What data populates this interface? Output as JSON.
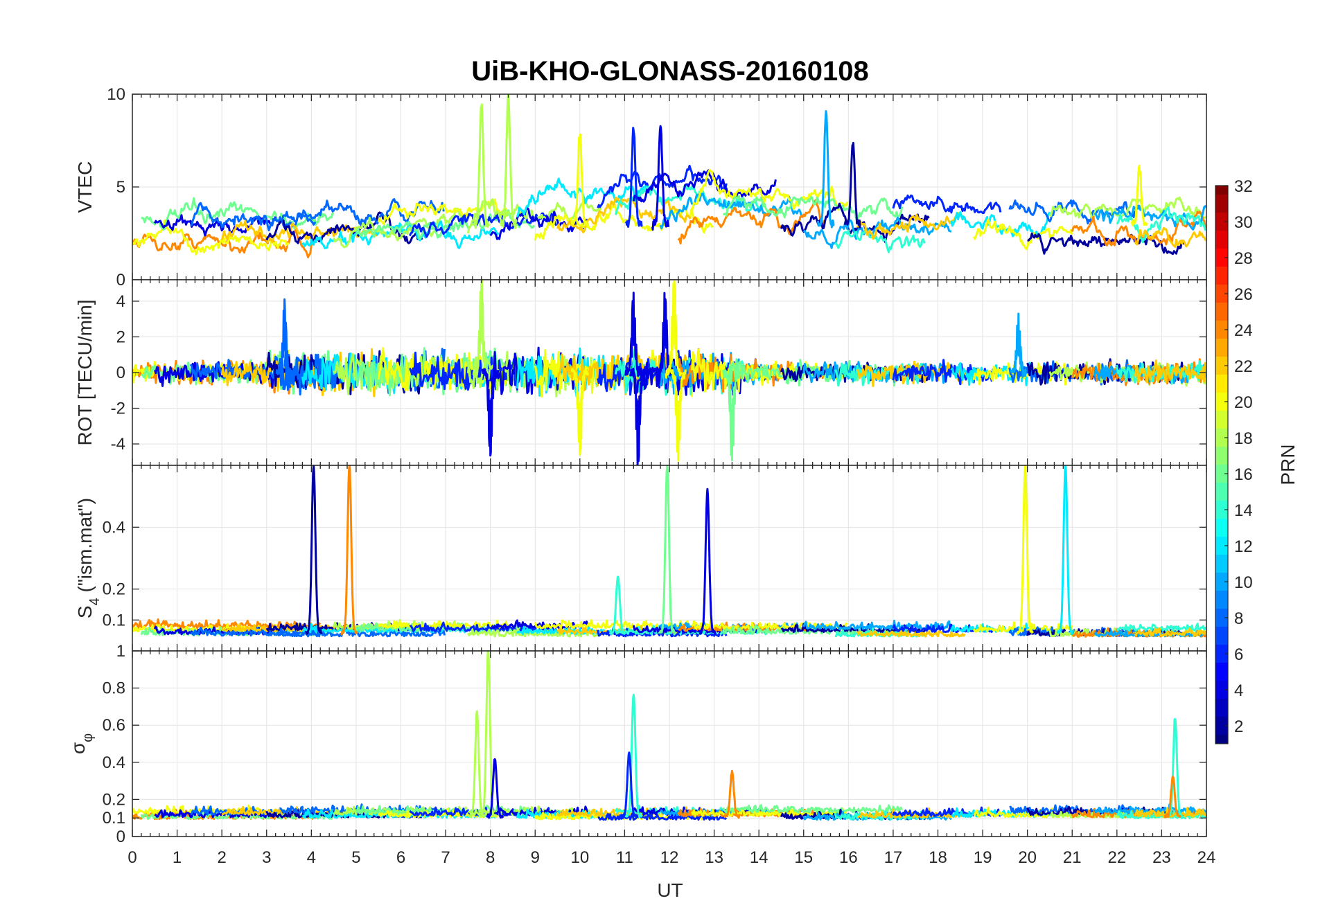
{
  "chart_data": {
    "type": "line",
    "title": "UiB-KHO-GLONASS-20160108",
    "xlabel": "UT",
    "xlim": [
      0,
      24
    ],
    "x_ticks": [
      "0",
      "1",
      "2",
      "3",
      "4",
      "5",
      "6",
      "7",
      "8",
      "9",
      "10",
      "11",
      "12",
      "13",
      "14",
      "15",
      "16",
      "17",
      "18",
      "19",
      "20",
      "21",
      "22",
      "23",
      "24"
    ],
    "grid": true,
    "colorbar": {
      "label": "PRN",
      "range": [
        1,
        32
      ],
      "colormap": "jet",
      "ticks": [
        "2",
        "4",
        "6",
        "8",
        "10",
        "12",
        "14",
        "16",
        "18",
        "20",
        "22",
        "24",
        "26",
        "28",
        "30",
        "32"
      ],
      "placement": "right"
    },
    "panels": [
      {
        "ylabel": "VTEC",
        "ylim": [
          0,
          10
        ],
        "y_ticks": [
          "0",
          "5",
          "10"
        ],
        "y_tick_values": [
          0,
          5,
          10
        ],
        "baseline": 3.0,
        "noise": 0.6,
        "spread": 1.2,
        "events": [
          {
            "x": 7.8,
            "peak": 9.5,
            "prn": 18
          },
          {
            "x": 8.4,
            "peak": 10.0,
            "prn": 18
          },
          {
            "x": 10.0,
            "peak": 8.0,
            "prn": 20
          },
          {
            "x": 11.2,
            "peak": 8.2,
            "prn": 6
          },
          {
            "x": 11.8,
            "peak": 8.3,
            "prn": 4
          },
          {
            "x": 15.5,
            "peak": 9.0,
            "prn": 10
          },
          {
            "x": 16.1,
            "peak": 7.5,
            "prn": 2
          },
          {
            "x": 22.5,
            "peak": 6.0,
            "prn": 20
          }
        ]
      },
      {
        "ylabel": "ROT [TECU/min]",
        "ylim": [
          -5.2,
          5.2
        ],
        "y_ticks": [
          "-4",
          "-2",
          "0",
          "2",
          "4"
        ],
        "y_tick_values": [
          -4,
          -2,
          0,
          2,
          4
        ],
        "baseline": 0.0,
        "noise": 0.5,
        "spread": 0.0,
        "events": [
          {
            "x": 3.4,
            "peak": 3.8,
            "prn": 8
          },
          {
            "x": 7.8,
            "peak": 5.2,
            "prn": 18
          },
          {
            "x": 8.0,
            "peak": -4.6,
            "prn": 4
          },
          {
            "x": 10.0,
            "peak": -4.5,
            "prn": 20
          },
          {
            "x": 11.2,
            "peak": 4.5,
            "prn": 4
          },
          {
            "x": 11.3,
            "peak": -5.2,
            "prn": 4
          },
          {
            "x": 11.9,
            "peak": 4.5,
            "prn": 4
          },
          {
            "x": 12.1,
            "peak": 5.2,
            "prn": 20
          },
          {
            "x": 12.2,
            "peak": -5.2,
            "prn": 20
          },
          {
            "x": 13.4,
            "peak": -5.2,
            "prn": 16
          },
          {
            "x": 19.8,
            "peak": 3.2,
            "prn": 10
          }
        ]
      },
      {
        "ylabel": "S4 (\"ism.mat\")",
        "ylabel_main": "S",
        "ylabel_sub": "4",
        "ylabel_rest": " (\"ism.mat\")",
        "ylim": [
          0,
          0.6
        ],
        "y_ticks": [
          "0.1",
          "0.2",
          "0.4"
        ],
        "y_tick_values": [
          0.1,
          0.2,
          0.4
        ],
        "baseline": 0.06,
        "noise": 0.015,
        "spread": 0.015,
        "events": [
          {
            "x": 4.05,
            "peak": 0.6,
            "prn": 2
          },
          {
            "x": 4.85,
            "peak": 0.6,
            "prn": 24
          },
          {
            "x": 11.95,
            "peak": 0.6,
            "prn": 16
          },
          {
            "x": 12.85,
            "peak": 0.52,
            "prn": 4
          },
          {
            "x": 10.85,
            "peak": 0.24,
            "prn": 14
          },
          {
            "x": 19.95,
            "peak": 0.6,
            "prn": 20
          },
          {
            "x": 20.85,
            "peak": 0.6,
            "prn": 12
          }
        ]
      },
      {
        "ylabel": "σφ",
        "ylabel_main": "σ",
        "ylabel_sub": "φ",
        "ylim": [
          0,
          1.0
        ],
        "y_ticks": [
          "0",
          "0.1",
          "0.2",
          "0.4",
          "0.6",
          "0.8",
          "1"
        ],
        "y_tick_values": [
          0,
          0.1,
          0.2,
          0.4,
          0.6,
          0.8,
          1.0
        ],
        "baseline": 0.11,
        "noise": 0.025,
        "spread": 0.02,
        "events": [
          {
            "x": 7.7,
            "peak": 0.67,
            "prn": 18
          },
          {
            "x": 7.95,
            "peak": 1.0,
            "prn": 18
          },
          {
            "x": 8.1,
            "peak": 0.42,
            "prn": 4
          },
          {
            "x": 11.2,
            "peak": 0.77,
            "prn": 14
          },
          {
            "x": 11.1,
            "peak": 0.45,
            "prn": 6
          },
          {
            "x": 13.4,
            "peak": 0.35,
            "prn": 24
          },
          {
            "x": 23.3,
            "peak": 0.64,
            "prn": 14
          },
          {
            "x": 23.25,
            "peak": 0.32,
            "prn": 24
          }
        ]
      }
    ]
  }
}
